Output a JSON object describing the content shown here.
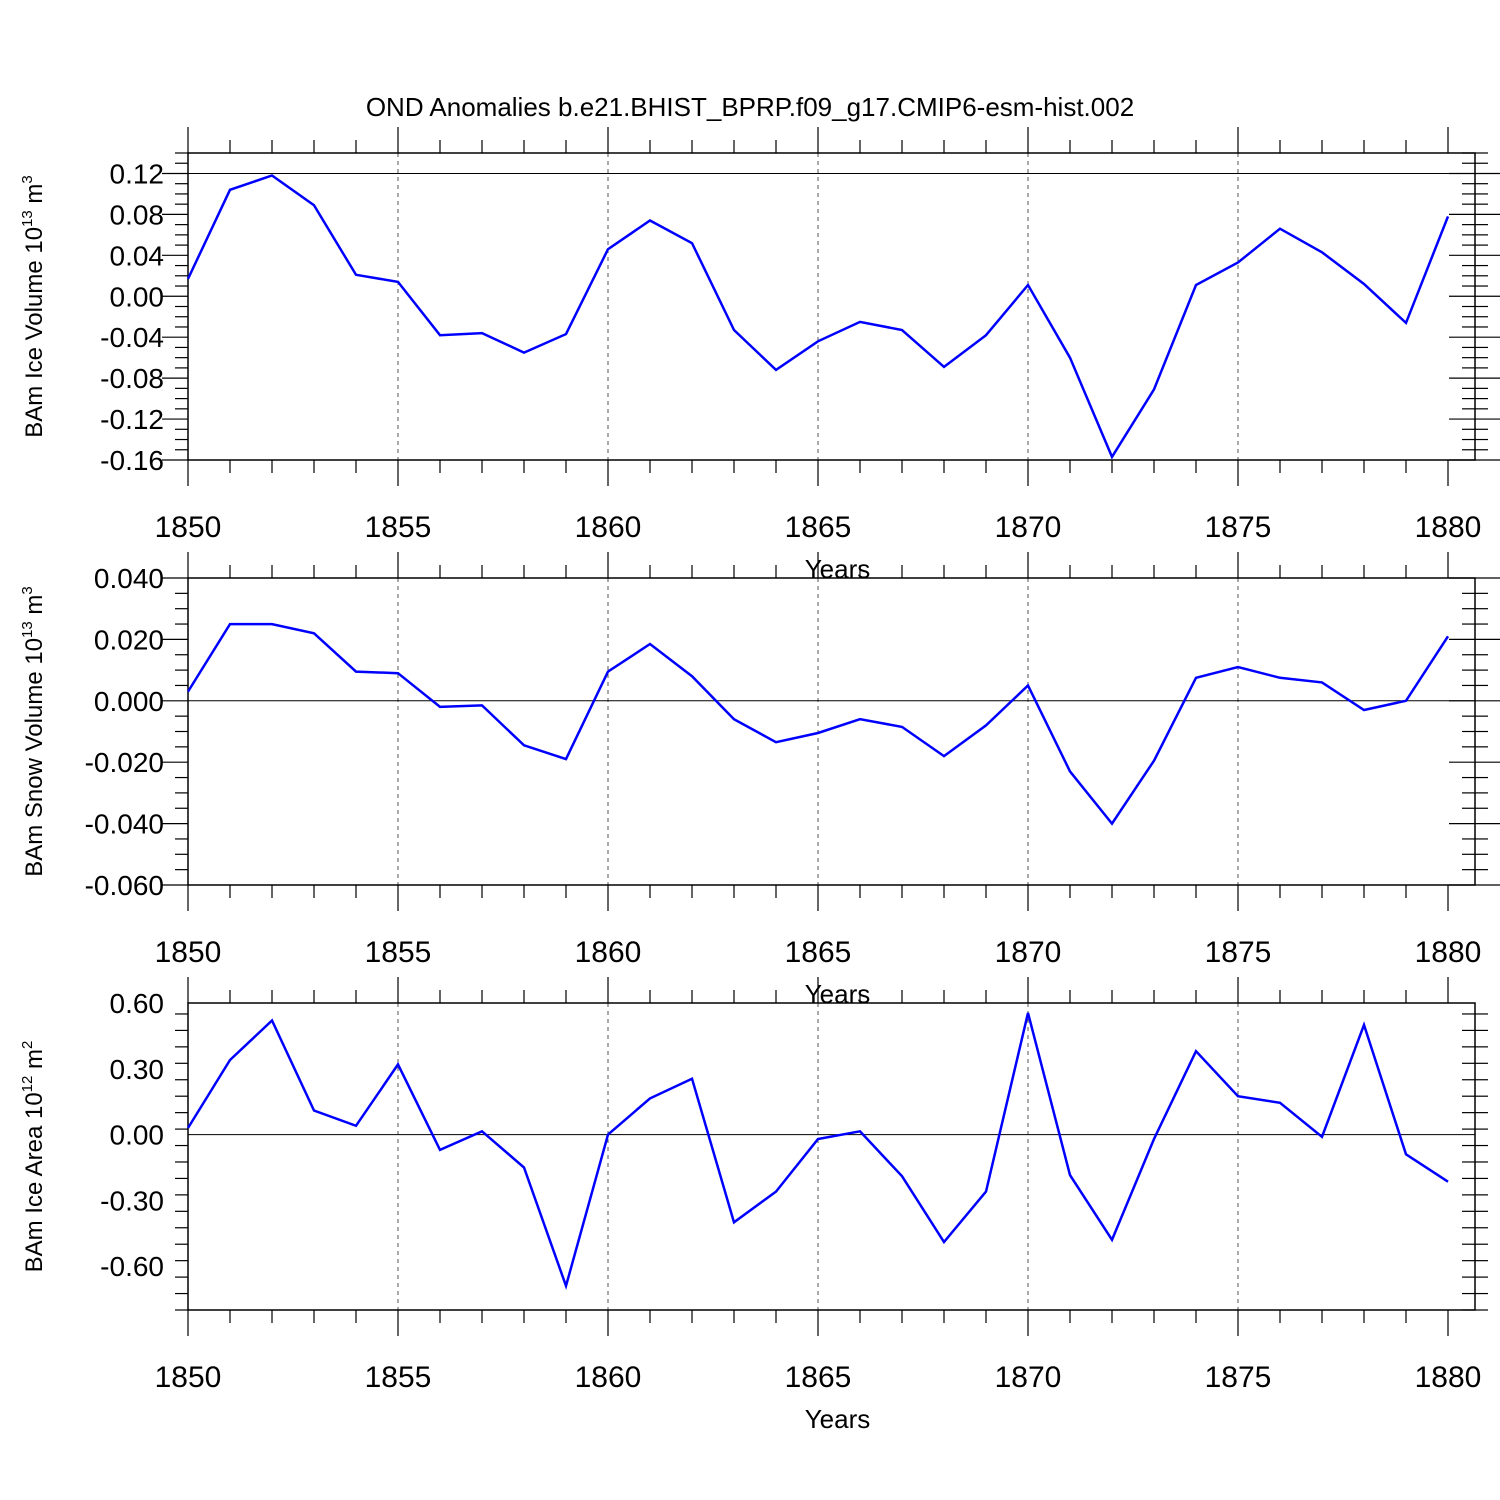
{
  "title": "OND Anomalies b.e21.BHIST_BPRP.f09_g17.CMIP6-esm-hist.002",
  "chart_data": [
    {
      "type": "line",
      "ylabel": "BAm Ice Volume 10",
      "ylabel_exp": "13",
      "ylabel_unit": "m",
      "ylabel_unit_exp": "3",
      "xlabel": "Years",
      "xlim": [
        1850,
        1880
      ],
      "ylim": [
        -0.16,
        0.14
      ],
      "yticks": [
        0.12,
        0.08,
        0.04,
        0.0,
        -0.04,
        -0.08,
        -0.12,
        -0.16
      ],
      "ytick_labels": [
        "0.12",
        "0.08",
        "0.04",
        "0.00",
        "-0.04",
        "-0.08",
        "-0.12",
        "-0.16"
      ],
      "xticks": [
        1850,
        1855,
        1860,
        1865,
        1870,
        1875,
        1880
      ],
      "xtick_labels": [
        "1850",
        "1855",
        "1860",
        "1865",
        "1870",
        "1875",
        "1880"
      ],
      "ref_value": 0.12,
      "years": [
        1850,
        1851,
        1852,
        1853,
        1854,
        1855,
        1856,
        1857,
        1858,
        1859,
        1860,
        1861,
        1862,
        1863,
        1864,
        1865,
        1866,
        1867,
        1868,
        1869,
        1870,
        1871,
        1872,
        1873,
        1874,
        1875,
        1876,
        1877,
        1878,
        1879,
        1880
      ],
      "values": [
        0.017,
        0.104,
        0.118,
        0.089,
        0.021,
        0.014,
        -0.038,
        -0.036,
        -0.055,
        -0.037,
        0.046,
        0.074,
        0.052,
        -0.033,
        -0.072,
        -0.044,
        -0.025,
        -0.033,
        -0.069,
        -0.038,
        0.011,
        -0.06,
        -0.157,
        -0.091,
        0.011,
        0.033,
        0.066,
        0.043,
        0.012,
        -0.026,
        0.078
      ],
      "color": "#0000ff"
    },
    {
      "type": "line",
      "ylabel": "BAm Snow Volume 10",
      "ylabel_exp": "13",
      "ylabel_unit": "m",
      "ylabel_unit_exp": "3",
      "xlabel": "Years",
      "xlim": [
        1850,
        1880
      ],
      "ylim": [
        -0.06,
        0.04
      ],
      "yticks": [
        0.04,
        0.02,
        0.0,
        -0.02,
        -0.04,
        -0.06
      ],
      "ytick_labels": [
        "0.040",
        "0.020",
        "0.000",
        "-0.020",
        "-0.040",
        "-0.060"
      ],
      "xticks": [
        1850,
        1855,
        1860,
        1865,
        1870,
        1875,
        1880
      ],
      "xtick_labels": [
        "1850",
        "1855",
        "1860",
        "1865",
        "1870",
        "1875",
        "1880"
      ],
      "ref_value": 0.0,
      "years": [
        1850,
        1851,
        1852,
        1853,
        1854,
        1855,
        1856,
        1857,
        1858,
        1859,
        1860,
        1861,
        1862,
        1863,
        1864,
        1865,
        1866,
        1867,
        1868,
        1869,
        1870,
        1871,
        1872,
        1873,
        1874,
        1875,
        1876,
        1877,
        1878,
        1879,
        1880
      ],
      "values": [
        0.003,
        0.025,
        0.025,
        0.022,
        0.0095,
        0.009,
        -0.002,
        -0.0015,
        -0.0145,
        -0.019,
        0.0095,
        0.0185,
        0.008,
        -0.006,
        -0.0135,
        -0.0105,
        -0.006,
        -0.0085,
        -0.018,
        -0.008,
        0.005,
        -0.023,
        -0.04,
        -0.0195,
        0.0075,
        0.011,
        0.0075,
        0.006,
        -0.003,
        0.0,
        0.021
      ],
      "color": "#0000ff"
    },
    {
      "type": "line",
      "ylabel": "BAm Ice Area 10",
      "ylabel_exp": "12",
      "ylabel_unit": "m",
      "ylabel_unit_exp": "2",
      "xlabel": "Years",
      "xlim": [
        1850,
        1880
      ],
      "ylim": [
        -0.8,
        0.6
      ],
      "yticks": [
        0.6,
        0.3,
        0.0,
        -0.3,
        -0.6
      ],
      "ytick_labels": [
        "0.60",
        "0.30",
        "0.00",
        "-0.30",
        "-0.60"
      ],
      "xticks": [
        1850,
        1855,
        1860,
        1865,
        1870,
        1875,
        1880
      ],
      "xtick_labels": [
        "1850",
        "1855",
        "1860",
        "1865",
        "1870",
        "1875",
        "1880"
      ],
      "ref_value": 0.0,
      "years": [
        1850,
        1851,
        1852,
        1853,
        1854,
        1855,
        1856,
        1857,
        1858,
        1859,
        1860,
        1861,
        1862,
        1863,
        1864,
        1865,
        1866,
        1867,
        1868,
        1869,
        1870,
        1871,
        1872,
        1873,
        1874,
        1875,
        1876,
        1877,
        1878,
        1879,
        1880
      ],
      "values": [
        0.03,
        0.34,
        0.52,
        0.11,
        0.04,
        0.32,
        -0.07,
        0.015,
        -0.15,
        -0.69,
        0.0,
        0.165,
        0.255,
        -0.4,
        -0.26,
        -0.02,
        0.015,
        -0.19,
        -0.49,
        -0.26,
        0.555,
        -0.185,
        -0.48,
        -0.02,
        0.38,
        0.175,
        0.145,
        -0.01,
        0.5,
        -0.09,
        -0.215
      ],
      "color": "#0000ff"
    }
  ]
}
